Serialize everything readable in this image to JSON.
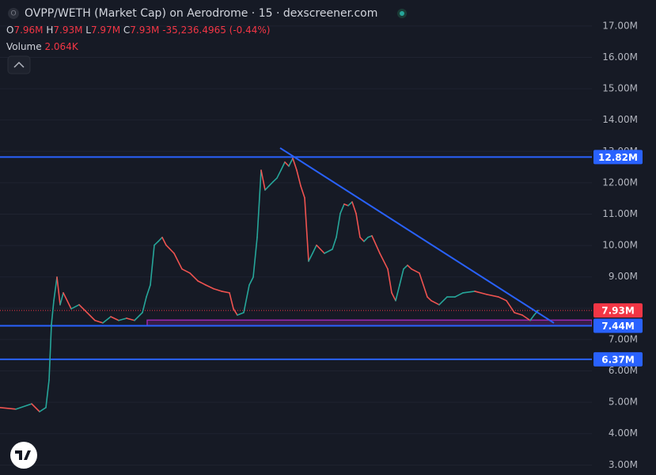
{
  "header": {
    "title": "OVPP/WETH (Market Cap) on Aerodrome · 15 · dexscreener.com",
    "ohlc": [
      {
        "label": "O",
        "value": "7.96M"
      },
      {
        "label": "H",
        "value": "7.93M"
      },
      {
        "label": "L",
        "value": "7.97M"
      },
      {
        "label": "C",
        "value": "7.93M"
      }
    ],
    "change": "-35,236.4965 (-0.44%)",
    "volume_label": "Volume",
    "volume": "2.064K"
  },
  "chart_data": {
    "type": "line",
    "x": [
      0,
      20,
      40,
      50,
      58,
      62,
      65,
      68,
      72,
      76,
      80,
      90,
      100,
      110,
      120,
      130,
      140,
      150,
      160,
      170,
      180,
      185,
      190,
      195,
      200,
      205,
      210,
      220,
      230,
      240,
      250,
      260,
      270,
      280,
      290,
      295,
      300,
      308,
      315,
      320,
      325,
      330,
      335,
      340,
      345,
      350,
      355,
      360,
      365,
      370,
      375,
      380,
      385,
      390,
      395,
      400,
      410,
      420,
      425,
      430,
      435,
      440,
      445,
      450,
      455,
      460,
      465,
      470,
      480,
      490,
      495,
      500,
      505,
      510,
      515,
      520,
      530,
      540,
      545,
      555,
      565,
      575,
      585,
      600,
      615,
      630,
      640,
      650,
      660,
      670,
      675,
      680
    ],
    "values": [
      4.83,
      4.78,
      4.95,
      4.7,
      4.83,
      5.71,
      7.48,
      8.24,
      8.99,
      8.11,
      8.49,
      7.98,
      8.11,
      7.86,
      7.61,
      7.53,
      7.73,
      7.61,
      7.68,
      7.61,
      7.86,
      8.36,
      8.74,
      10.01,
      10.13,
      10.26,
      10.01,
      9.75,
      9.25,
      9.12,
      8.87,
      8.74,
      8.62,
      8.54,
      8.49,
      7.98,
      7.78,
      7.86,
      8.74,
      8.99,
      10.26,
      12.4,
      11.77,
      11.9,
      12.03,
      12.15,
      12.4,
      12.66,
      12.53,
      12.78,
      12.4,
      11.9,
      11.52,
      9.5,
      9.75,
      10.01,
      9.75,
      9.88,
      10.26,
      11.02,
      11.32,
      11.27,
      11.39,
      11.02,
      10.26,
      10.13,
      10.26,
      10.31,
      9.75,
      9.25,
      8.49,
      8.24,
      8.74,
      9.25,
      9.37,
      9.25,
      9.12,
      8.36,
      8.24,
      8.11,
      8.36,
      8.36,
      8.49,
      8.54,
      8.44,
      8.36,
      8.24,
      7.86,
      7.78,
      7.61,
      7.78,
      7.93
    ],
    "up_color": "#26a69a",
    "down_color": "#ef5350",
    "xlim": [
      0,
      748
    ],
    "ylim": [
      2.68,
      17.83
    ],
    "yticks": [
      {
        "value": 3,
        "label": "3.00M"
      },
      {
        "value": 4,
        "label": "4.00M"
      },
      {
        "value": 5,
        "label": "5.00M"
      },
      {
        "value": 6,
        "label": "6.00M"
      },
      {
        "value": 7,
        "label": "7.00M"
      },
      {
        "value": 8,
        "label": "8.00M"
      },
      {
        "value": 9,
        "label": "9.00M"
      },
      {
        "value": 10,
        "label": "10.00M"
      },
      {
        "value": 11,
        "label": "11.00M"
      },
      {
        "value": 12,
        "label": "12.00M"
      },
      {
        "value": 13,
        "label": "13.00M"
      },
      {
        "value": 14,
        "label": "14.00M"
      },
      {
        "value": 15,
        "label": "15.00M"
      },
      {
        "value": 16,
        "label": "16.00M"
      },
      {
        "value": 17,
        "label": "17.00M"
      }
    ],
    "grid": true,
    "levels": [
      {
        "value": 12.82,
        "label": "12.82M"
      },
      {
        "value": 7.44,
        "label": "7.44M"
      },
      {
        "value": 6.37,
        "label": "6.37M"
      }
    ],
    "level_color": "#2962ff",
    "current": {
      "value": 7.93,
      "label": "7.93M"
    },
    "current_color": "#f23645",
    "trendline": {
      "x": [
        354,
        700
      ],
      "values": [
        13.11,
        7.53
      ]
    },
    "zone": {
      "x": [
        186,
        748
      ],
      "values": [
        7.44,
        7.62
      ],
      "color": "#9c27b0"
    }
  }
}
